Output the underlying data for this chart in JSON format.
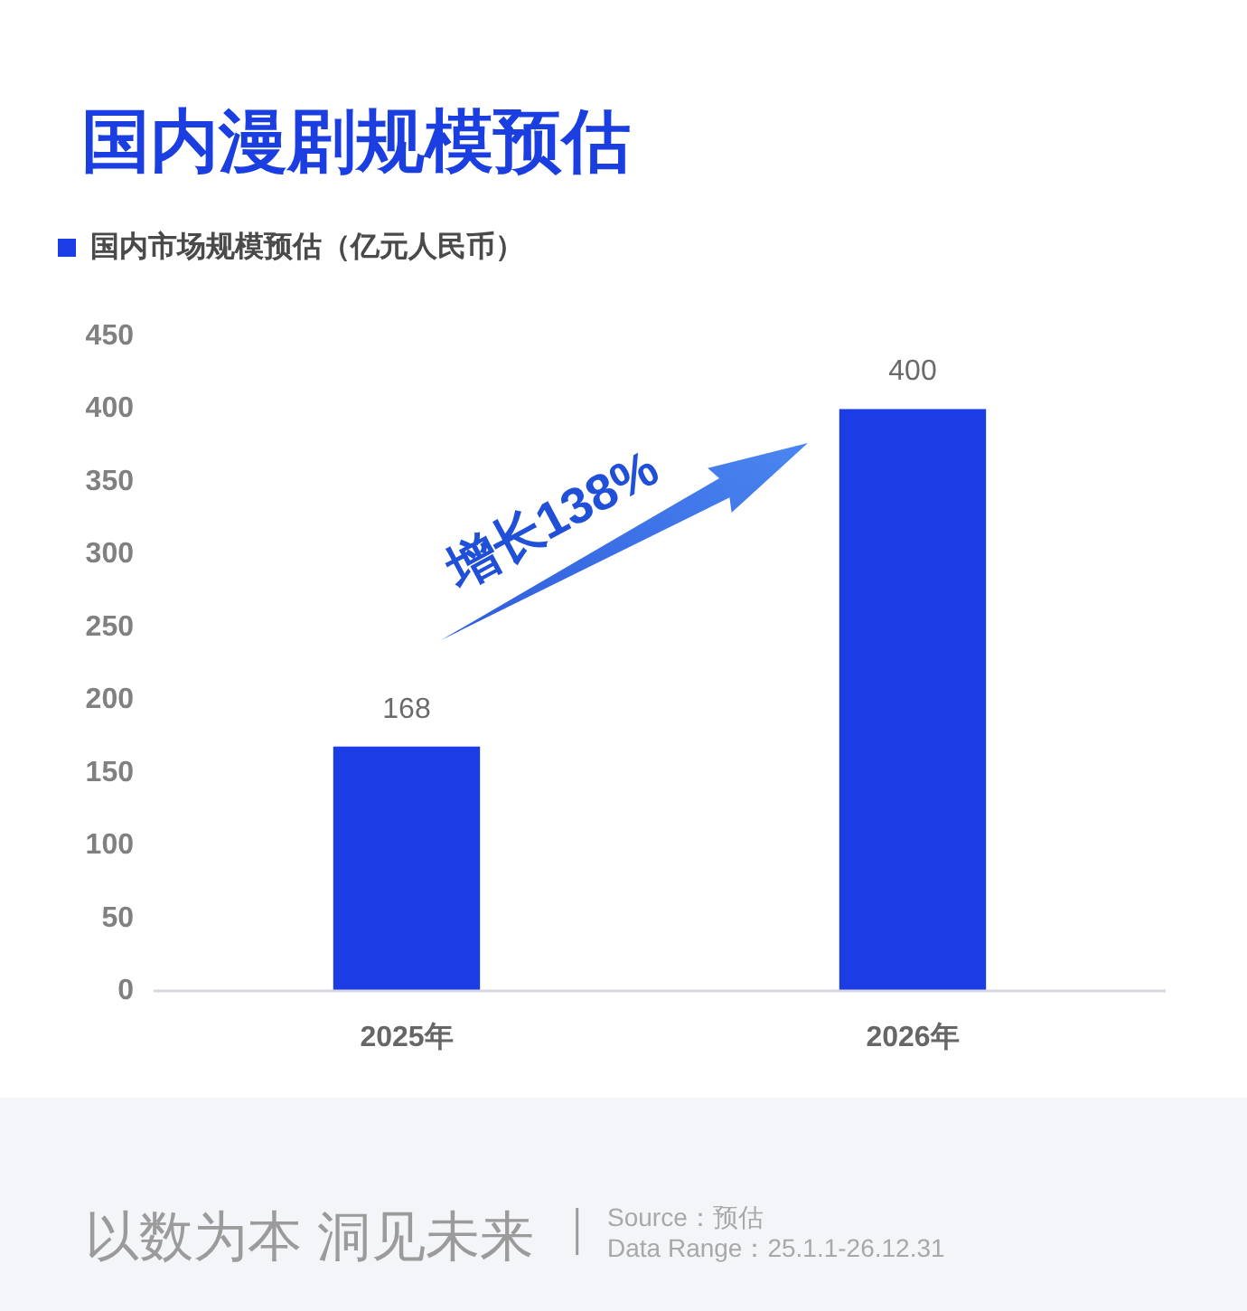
{
  "chart_data": {
    "type": "bar",
    "title": "国内漫剧规模预估",
    "categories": [
      "2025年",
      "2026年"
    ],
    "series": [
      {
        "name": "国内市场规模预估（亿元人民币）",
        "color": "#1c3de6",
        "values": [
          168,
          400
        ]
      }
    ],
    "ylim": [
      0,
      450
    ],
    "yticks": [
      0,
      50,
      100,
      150,
      200,
      250,
      300,
      350,
      400,
      450
    ],
    "data_labels": true,
    "legend": "top left",
    "annotations": [
      "增长138%",
      "以数为本 洞见未来",
      "Source：预估",
      "Data Range：25.1.1-26.12.31"
    ]
  }
}
